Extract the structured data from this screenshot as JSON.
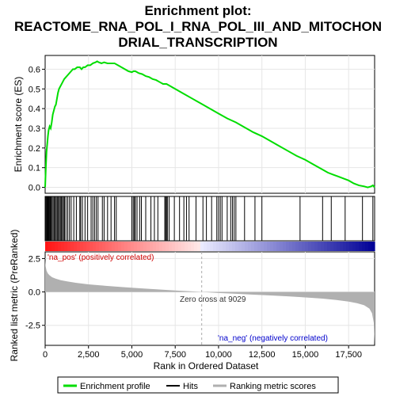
{
  "title": {
    "line1": "Enrichment plot:",
    "line2": "REACTOME_RNA_POL_I_RNA_POL_III_AND_MITOCHON",
    "line3": "DRIAL_TRANSCRIPTION"
  },
  "legend": {
    "enrichment": "Enrichment profile",
    "hits": "Hits",
    "ranking": "Ranking metric scores"
  },
  "labels": {
    "es_axis": "Enrichment score (ES)",
    "metric_axis": "Ranked list metric (PreRanked)",
    "x_axis": "Rank in Ordered Dataset",
    "pos": "'na_pos' (positively correlated)",
    "neg": "'na_neg' (negatively correlated)",
    "zero_cross": "Zero cross at 9029"
  },
  "colors": {
    "enrichment_line": "#00dd00",
    "hit_line": "#000000",
    "metric_fill": "#b0b0b0",
    "zero_line": "#aaaaaa"
  },
  "chart_data": {
    "type": "line",
    "n_genes": 19000,
    "zero_cross": 9029,
    "x_ticks": [
      0,
      2500,
      5000,
      7500,
      10000,
      12500,
      15000,
      17500
    ],
    "x_tick_labels": [
      "0",
      "2,500",
      "5,000",
      "7,500",
      "10,000",
      "12,500",
      "15,000",
      "17,500"
    ],
    "es_ticks": [
      0.0,
      0.1,
      0.2,
      0.3,
      0.4,
      0.5,
      0.6
    ],
    "es_tick_labels": [
      "0.0",
      "0.1",
      "0.2",
      "0.3",
      "0.4",
      "0.5",
      "0.6"
    ],
    "es_ylim": [
      -0.03,
      0.67
    ],
    "metric_ticks": [
      2.5,
      0.0,
      -2.5
    ],
    "metric_tick_labels": [
      "2.5",
      "0.0",
      "-2.5"
    ],
    "metric_ylim": [
      -4.0,
      3.0
    ],
    "enrichment_profile": {
      "x": [
        0,
        40,
        80,
        120,
        160,
        200,
        260,
        320,
        380,
        440,
        500,
        560,
        620,
        680,
        740,
        800,
        860,
        920,
        980,
        1040,
        1100,
        1200,
        1300,
        1400,
        1500,
        1600,
        1700,
        1850,
        2000,
        2100,
        2200,
        2300,
        2450,
        2600,
        2750,
        2900,
        3000,
        3100,
        3250,
        3400,
        3600,
        3800,
        4000,
        4200,
        4400,
        4600,
        4800,
        5000,
        5100,
        5200,
        5400,
        5600,
        5800,
        6000,
        6200,
        6400,
        6600,
        6800,
        7000,
        7200,
        7500,
        8000,
        8500,
        9000,
        9500,
        10000,
        10500,
        11000,
        11500,
        12000,
        12500,
        13000,
        13500,
        14000,
        14500,
        15000,
        15500,
        16000,
        16300,
        16600,
        16900,
        17200,
        17500,
        17800,
        18100,
        18400,
        18600,
        18800,
        18900,
        19000
      ],
      "es": [
        0.0,
        0.1,
        0.18,
        0.22,
        0.26,
        0.29,
        0.31,
        0.3,
        0.33,
        0.37,
        0.39,
        0.41,
        0.42,
        0.45,
        0.48,
        0.5,
        0.51,
        0.52,
        0.53,
        0.54,
        0.55,
        0.56,
        0.57,
        0.58,
        0.59,
        0.6,
        0.6,
        0.61,
        0.61,
        0.6,
        0.61,
        0.61,
        0.62,
        0.62,
        0.63,
        0.635,
        0.64,
        0.635,
        0.63,
        0.635,
        0.63,
        0.63,
        0.63,
        0.62,
        0.61,
        0.6,
        0.59,
        0.585,
        0.59,
        0.59,
        0.58,
        0.575,
        0.565,
        0.56,
        0.55,
        0.545,
        0.535,
        0.525,
        0.525,
        0.515,
        0.5,
        0.475,
        0.45,
        0.425,
        0.4,
        0.375,
        0.35,
        0.33,
        0.305,
        0.28,
        0.26,
        0.235,
        0.21,
        0.185,
        0.16,
        0.14,
        0.115,
        0.09,
        0.075,
        0.065,
        0.055,
        0.045,
        0.035,
        0.02,
        0.01,
        0.005,
        0.0,
        0.005,
        0.01,
        0.0
      ]
    },
    "hit_ranks": [
      20,
      60,
      100,
      140,
      180,
      220,
      260,
      300,
      340,
      400,
      460,
      520,
      580,
      640,
      700,
      760,
      820,
      880,
      940,
      1000,
      1060,
      1120,
      1200,
      1300,
      1400,
      1500,
      1650,
      1800,
      2000,
      2050,
      2150,
      2300,
      2450,
      2650,
      2750,
      2850,
      2950,
      3050,
      3300,
      3400,
      3600,
      3800,
      4000,
      4100,
      5000,
      5080,
      5150,
      5200,
      5300,
      5450,
      5550,
      5800,
      6100,
      6300,
      6500,
      6900,
      6950,
      7000,
      7050,
      7150,
      7450,
      7750,
      8000,
      8150,
      8300,
      8700,
      9100,
      9300,
      9600,
      9900,
      10000,
      10100,
      10200,
      10500,
      10700,
      10800,
      10900,
      11000,
      11500,
      12100,
      12500,
      14700,
      16000,
      16500,
      17300,
      18300,
      18900
    ],
    "metric": {
      "x": [
        0,
        30,
        80,
        150,
        250,
        400,
        600,
        900,
        1300,
        1800,
        2500,
        3500,
        4500,
        5500,
        6500,
        7500,
        8500,
        9029,
        10000,
        11000,
        12000,
        13000,
        14000,
        15000,
        16000,
        16800,
        17500,
        18000,
        18400,
        18700,
        18850,
        18950,
        19000
      ],
      "values": [
        2.4,
        1.9,
        1.6,
        1.4,
        1.25,
        1.1,
        1.0,
        0.88,
        0.78,
        0.68,
        0.57,
        0.46,
        0.36,
        0.27,
        0.19,
        0.11,
        0.04,
        0.0,
        -0.08,
        -0.14,
        -0.2,
        -0.26,
        -0.33,
        -0.41,
        -0.5,
        -0.6,
        -0.72,
        -0.85,
        -1.0,
        -1.25,
        -1.6,
        -2.3,
        -3.9
      ]
    }
  }
}
